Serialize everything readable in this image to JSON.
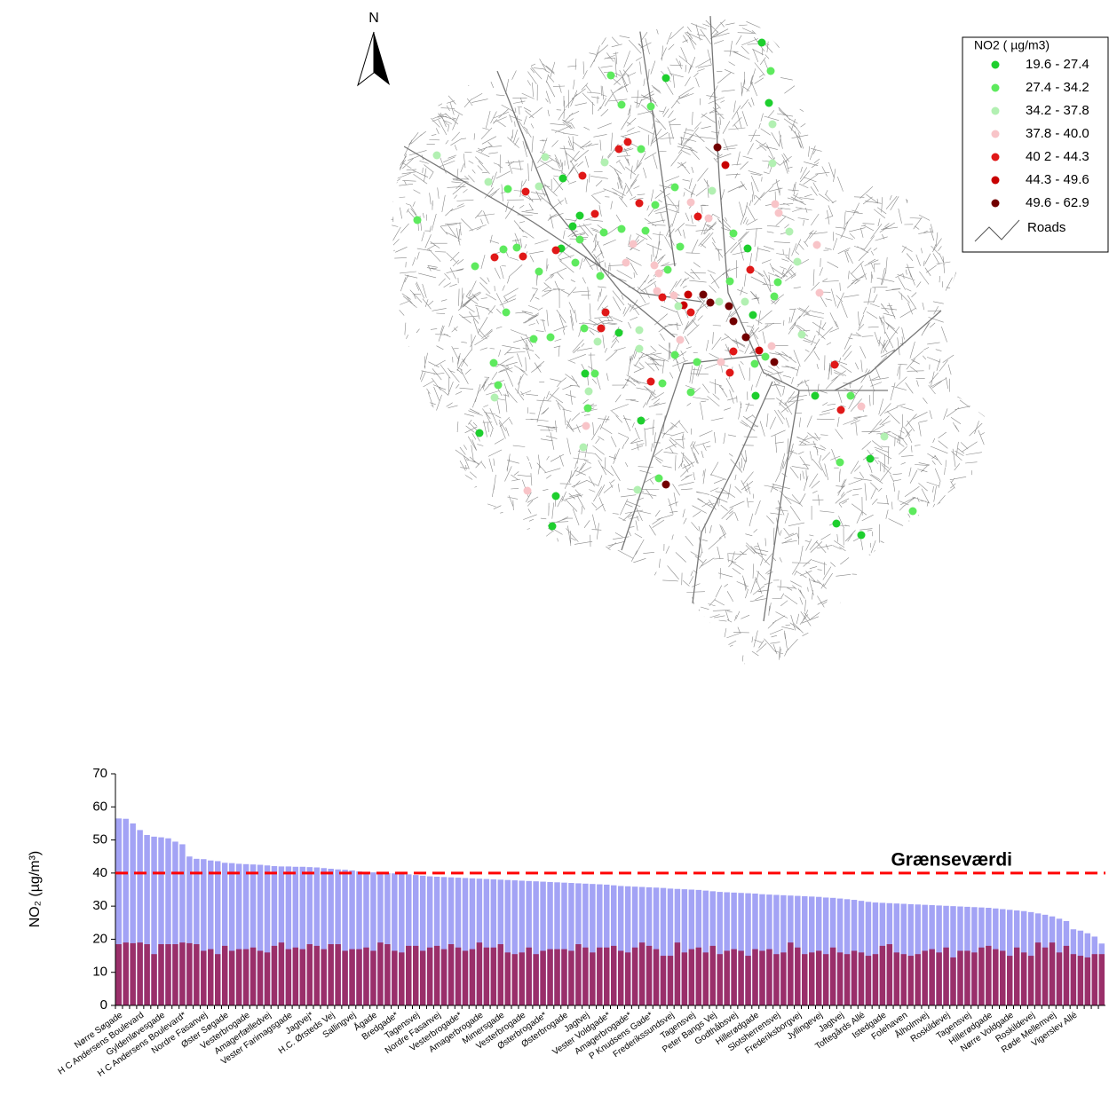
{
  "map": {
    "north_label": "N",
    "legend": {
      "title": "NO2  ( µg/m3)",
      "entries": [
        {
          "label": "19.6 - 27.4",
          "color": "#1ecf2e"
        },
        {
          "label": "27.4 - 34.2",
          "color": "#5eea5e"
        },
        {
          "label": "34.2 - 37.8",
          "color": "#b2f0b2"
        },
        {
          "label": "37.8 - 40.0",
          "color": "#f8c4c8"
        },
        {
          "label": "40 2 - 44.3",
          "color": "#e01818"
        },
        {
          "label": "44.3 - 49.6",
          "color": "#c80000"
        },
        {
          "label": "49.6 - 62.9",
          "color": "#720000"
        }
      ],
      "roads_label": "Roads"
    }
  },
  "chart_data": {
    "type": "bar",
    "bar_mode": "overlay",
    "ylabel": "NO₂ (µg/m³)",
    "categories": [
      "Nørre Søgade",
      null,
      null,
      "H C Andersens Boulevard",
      null,
      null,
      "Gyldenløvesgade",
      null,
      null,
      "H C Andersens Boulevard*",
      null,
      null,
      "Nordre Fasanvej",
      null,
      null,
      "Øster Søgade",
      null,
      null,
      "Vesterbrogade",
      null,
      null,
      "Amagerfælledvej",
      null,
      null,
      "Vester Farimagsgade",
      null,
      null,
      "Jagtvej*",
      null,
      null,
      "H.C. Ørsteds Vej",
      null,
      null,
      "Sallingvej",
      null,
      null,
      "Ågade",
      null,
      null,
      "Bredgade*",
      null,
      null,
      "Tagensvej",
      null,
      null,
      "Nordre Fasanvej",
      null,
      null,
      "Vesterbrogade*",
      null,
      null,
      "Amagerbrogade",
      null,
      null,
      "Mimersgade",
      null,
      null,
      "Vesterbrogade",
      null,
      null,
      "Østerbrogade*",
      null,
      null,
      "Østerbrogade",
      null,
      null,
      "Jagtvej",
      null,
      null,
      "Vester Voldgade*",
      null,
      null,
      "Amagerbrogade*",
      null,
      null,
      "P Knudsens Gade*",
      null,
      null,
      "Frederikssundsvej",
      null,
      null,
      "Tagensvej",
      null,
      null,
      "Peter Bangs Vej",
      null,
      null,
      "Godthåbsvej",
      null,
      null,
      "Hillerødgade",
      null,
      null,
      "Slotsherrensvej",
      null,
      null,
      "Frederiksborgvej",
      null,
      null,
      "Jyllingevej",
      null,
      null,
      "Jagtvej",
      null,
      null,
      "Toftegårds Allé",
      null,
      null,
      "Istedgade",
      null,
      null,
      "Folehaven",
      null,
      null,
      "Ålholmvej",
      null,
      null,
      "Roskildevej",
      null,
      null,
      "Tagensvej",
      null,
      null,
      "Hillerødgade",
      null,
      null,
      "Nørre Voldgade",
      null,
      null,
      "Roskildevej",
      null,
      null,
      "Røde Mellemvej",
      null,
      null,
      "Vigerslev Allé",
      null,
      null,
      null,
      null
    ],
    "series": [
      {
        "color": "#a3a3f5",
        "values": [
          56.5,
          56.4,
          55,
          53,
          51.5,
          51,
          50.8,
          50.5,
          49.5,
          48.7,
          45,
          44.3,
          44.2,
          43.8,
          43.6,
          43.1,
          43,
          42.8,
          42.7,
          42.6,
          42.5,
          42.3,
          42.1,
          42,
          42,
          41.9,
          41.9,
          41.8,
          41.7,
          41.5,
          41.3,
          41.1,
          41,
          40.8,
          40.5,
          40.3,
          40.2,
          40.1,
          40,
          39.9,
          39.8,
          39.6,
          39.4,
          39.2,
          39,
          38.9,
          38.8,
          38.7,
          38.6,
          38.5,
          38.4,
          38.3,
          38.2,
          38.1,
          38,
          37.9,
          37.8,
          37.7,
          37.6,
          37.5,
          37.4,
          37.3,
          37.2,
          37.1,
          37,
          36.9,
          36.8,
          36.7,
          36.6,
          36.5,
          36.3,
          36.1,
          36,
          35.9,
          35.8,
          35.7,
          35.6,
          35.5,
          35.3,
          35.2,
          35.1,
          35,
          34.9,
          34.7,
          34.5,
          34.3,
          34.2,
          34.1,
          34,
          33.9,
          33.8,
          33.6,
          33.5,
          33.4,
          33.3,
          33.2,
          33.1,
          33,
          32.9,
          32.8,
          32.6,
          32.5,
          32.3,
          32.1,
          31.9,
          31.6,
          31.3,
          31.1,
          31,
          30.9,
          30.8,
          30.7,
          30.6,
          30.5,
          30.4,
          30.3,
          30.2,
          30.1,
          30,
          29.9,
          29.8,
          29.7,
          29.6,
          29.5,
          29.3,
          29.1,
          28.9,
          28.7,
          28.5,
          28.2,
          27.8,
          27.4,
          26.9,
          26.2,
          25.5,
          23,
          22.6,
          21.8,
          20.8,
          18.7
        ]
      },
      {
        "color": "#9a2f6a",
        "values": [
          18.5,
          19,
          18.8,
          19,
          18.5,
          15.5,
          18.5,
          18.5,
          18.5,
          19,
          18.8,
          18.5,
          16.5,
          17,
          15.5,
          18,
          16.5,
          17,
          17,
          17.5,
          16.5,
          16,
          18,
          19,
          17,
          17.5,
          17,
          18.5,
          18,
          17,
          18.5,
          18.5,
          16.5,
          17,
          17,
          17.5,
          16.5,
          19,
          18.5,
          16.5,
          16,
          18,
          18,
          16.5,
          17.5,
          18,
          17,
          18.5,
          17.5,
          16.5,
          17,
          19,
          17.5,
          17.5,
          18.5,
          16,
          15.5,
          16,
          17.5,
          15.5,
          16.5,
          17,
          17,
          17,
          16.5,
          18.5,
          17.5,
          16,
          17.5,
          17.5,
          18,
          16.5,
          16,
          17.5,
          19,
          18,
          17,
          15,
          15,
          19,
          16,
          17,
          17.5,
          16,
          18,
          15.5,
          16.5,
          17,
          16.5,
          15,
          17,
          16.5,
          17,
          15.5,
          16,
          19,
          17.5,
          15.5,
          16,
          16.5,
          15.5,
          17.5,
          16,
          15.5,
          16.5,
          16,
          15,
          15.5,
          18,
          18.5,
          16,
          15.5,
          15,
          15.5,
          16.5,
          17,
          16,
          17.5,
          14.5,
          16.5,
          16.5,
          16,
          17.5,
          18,
          17,
          16.5,
          15,
          17.5,
          16,
          15,
          19,
          17.5,
          19,
          16,
          18,
          15.5,
          15,
          14.5,
          15.5,
          15.5
        ]
      }
    ],
    "ylim": [
      0,
      70
    ],
    "yticks": [
      0,
      10,
      20,
      30,
      40,
      50,
      60,
      70
    ],
    "reference_line": {
      "value": 40,
      "label": "Grænseværdi",
      "color": "#ff0000"
    }
  }
}
